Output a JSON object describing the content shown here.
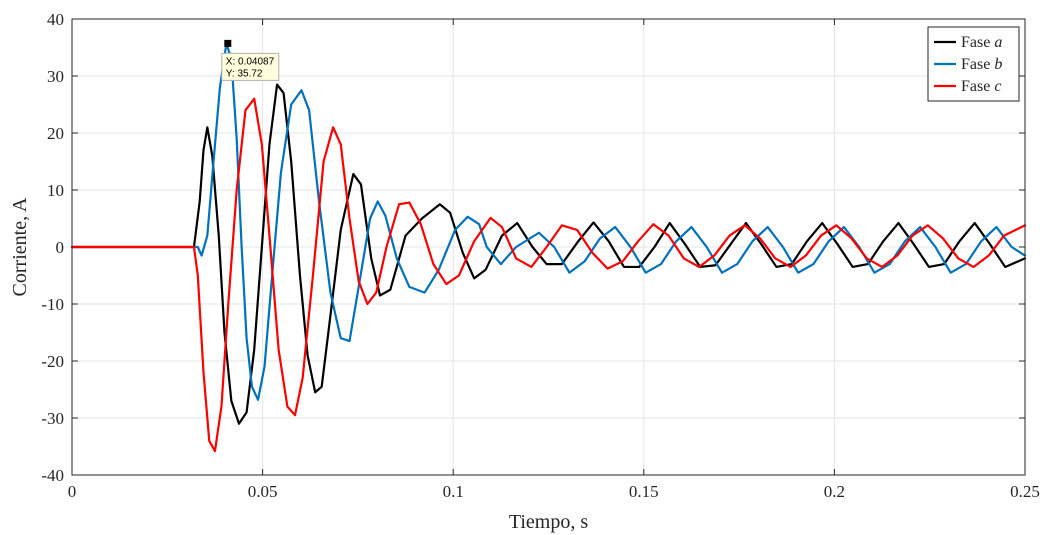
{
  "chart_data": {
    "type": "line",
    "title": "",
    "xlabel": "Tiempo, s",
    "ylabel": "Corriente, A",
    "xlim": [
      0,
      0.25
    ],
    "ylim": [
      -40,
      40
    ],
    "grid": true,
    "x_ticks": [
      0,
      0.05,
      0.1,
      0.15,
      0.2,
      0.25
    ],
    "x_tick_labels": [
      "0",
      "0.05",
      "0.1",
      "0.15",
      "0.2",
      "0.25"
    ],
    "y_ticks": [
      -40,
      -30,
      -20,
      -10,
      0,
      10,
      20,
      30,
      40
    ],
    "y_tick_labels": [
      "-40",
      "-30",
      "-20",
      "-10",
      "0",
      "10",
      "20",
      "30",
      "40"
    ],
    "legend_position": "top-right",
    "series": [
      {
        "name": "Fase a",
        "name_prefix": "Fase ",
        "name_suffix": "a",
        "color": "#000000",
        "points": [
          [
            0,
            0
          ],
          [
            0.032,
            0
          ],
          [
            0.0335,
            8
          ],
          [
            0.0345,
            17
          ],
          [
            0.0355,
            21
          ],
          [
            0.0368,
            16
          ],
          [
            0.0385,
            2
          ],
          [
            0.04,
            -15
          ],
          [
            0.0418,
            -27
          ],
          [
            0.0438,
            -31
          ],
          [
            0.0458,
            -29
          ],
          [
            0.0478,
            -18
          ],
          [
            0.0498,
            0
          ],
          [
            0.0518,
            18
          ],
          [
            0.0538,
            28.5
          ],
          [
            0.0555,
            27
          ],
          [
            0.0575,
            15
          ],
          [
            0.0598,
            -5
          ],
          [
            0.0618,
            -19
          ],
          [
            0.0638,
            -25.5
          ],
          [
            0.0655,
            -24.5
          ],
          [
            0.0678,
            -12
          ],
          [
            0.0705,
            3
          ],
          [
            0.0738,
            12.8
          ],
          [
            0.0758,
            11
          ],
          [
            0.0785,
            -2
          ],
          [
            0.0808,
            -8.5
          ],
          [
            0.0835,
            -7.5
          ],
          [
            0.0875,
            2
          ],
          [
            0.0918,
            5
          ],
          [
            0.0965,
            7.5
          ],
          [
            0.0992,
            6
          ],
          [
            0.1025,
            -1
          ],
          [
            0.1055,
            -5.5
          ],
          [
            0.1085,
            -4
          ],
          [
            0.1128,
            2
          ],
          [
            0.1168,
            4.2
          ],
          [
            0.1208,
            0
          ],
          [
            0.1245,
            -3
          ],
          [
            0.1285,
            -3
          ],
          [
            0.1328,
            1
          ],
          [
            0.1368,
            4.3
          ],
          [
            0.1408,
            1
          ],
          [
            0.1448,
            -3.5
          ],
          [
            0.1488,
            -3.5
          ],
          [
            0.1528,
            0
          ],
          [
            0.1568,
            4.2
          ],
          [
            0.1608,
            0.5
          ],
          [
            0.1648,
            -3.5
          ],
          [
            0.1688,
            -3.2
          ],
          [
            0.1728,
            0.5
          ],
          [
            0.1768,
            4.2
          ],
          [
            0.1808,
            0.5
          ],
          [
            0.1848,
            -3.5
          ],
          [
            0.1888,
            -3
          ],
          [
            0.1928,
            1
          ],
          [
            0.1968,
            4.2
          ],
          [
            0.2008,
            0.5
          ],
          [
            0.2048,
            -3.5
          ],
          [
            0.2088,
            -3
          ],
          [
            0.2128,
            1
          ],
          [
            0.2168,
            4.2
          ],
          [
            0.2208,
            0.5
          ],
          [
            0.2248,
            -3.5
          ],
          [
            0.2288,
            -3
          ],
          [
            0.2328,
            1
          ],
          [
            0.2368,
            4.2
          ],
          [
            0.2408,
            0.5
          ],
          [
            0.2448,
            -3.5
          ],
          [
            0.25,
            -2
          ]
        ]
      },
      {
        "name": "Fase b",
        "name_prefix": "Fase ",
        "name_suffix": "b",
        "color": "#0072bd",
        "points": [
          [
            0,
            0
          ],
          [
            0.033,
            0
          ],
          [
            0.034,
            -1.5
          ],
          [
            0.0355,
            2
          ],
          [
            0.037,
            14
          ],
          [
            0.0388,
            28
          ],
          [
            0.0405,
            35.7
          ],
          [
            0.0418,
            33
          ],
          [
            0.0432,
            19
          ],
          [
            0.0445,
            0
          ],
          [
            0.0458,
            -16
          ],
          [
            0.0472,
            -24.5
          ],
          [
            0.0488,
            -26.8
          ],
          [
            0.0505,
            -21
          ],
          [
            0.0525,
            -5
          ],
          [
            0.0548,
            13
          ],
          [
            0.0575,
            25
          ],
          [
            0.0602,
            27.5
          ],
          [
            0.0622,
            24
          ],
          [
            0.0648,
            8
          ],
          [
            0.0678,
            -8
          ],
          [
            0.0705,
            -16
          ],
          [
            0.0728,
            -16.5
          ],
          [
            0.0752,
            -7
          ],
          [
            0.0782,
            5
          ],
          [
            0.0802,
            8
          ],
          [
            0.0822,
            5.5
          ],
          [
            0.0852,
            -2
          ],
          [
            0.0885,
            -7
          ],
          [
            0.0925,
            -8
          ],
          [
            0.0962,
            -4
          ],
          [
            0.1005,
            3
          ],
          [
            0.1038,
            5.3
          ],
          [
            0.1068,
            4
          ],
          [
            0.1088,
            0
          ],
          [
            0.1125,
            -3
          ],
          [
            0.1165,
            0
          ],
          [
            0.1225,
            2.5
          ],
          [
            0.1265,
            0
          ],
          [
            0.1305,
            -4.5
          ],
          [
            0.1345,
            -2.5
          ],
          [
            0.1385,
            1.5
          ],
          [
            0.1425,
            3.5
          ],
          [
            0.1465,
            0
          ],
          [
            0.1505,
            -4.5
          ],
          [
            0.1545,
            -3
          ],
          [
            0.1585,
            1
          ],
          [
            0.1625,
            3.5
          ],
          [
            0.1665,
            0
          ],
          [
            0.1705,
            -4.5
          ],
          [
            0.1745,
            -3
          ],
          [
            0.1785,
            1
          ],
          [
            0.1825,
            3.5
          ],
          [
            0.1865,
            0
          ],
          [
            0.1905,
            -4.5
          ],
          [
            0.1945,
            -3
          ],
          [
            0.1985,
            1
          ],
          [
            0.2025,
            3.5
          ],
          [
            0.2065,
            0
          ],
          [
            0.2105,
            -4.5
          ],
          [
            0.2145,
            -3
          ],
          [
            0.2185,
            1
          ],
          [
            0.2225,
            3.5
          ],
          [
            0.2265,
            0
          ],
          [
            0.2305,
            -4.5
          ],
          [
            0.2345,
            -3
          ],
          [
            0.2385,
            1
          ],
          [
            0.2425,
            3.5
          ],
          [
            0.2465,
            0
          ],
          [
            0.25,
            -1.5
          ]
        ]
      },
      {
        "name": "Fase c",
        "name_prefix": "Fase ",
        "name_suffix": "c",
        "color": "#ff0000",
        "points": [
          [
            0,
            0
          ],
          [
            0.032,
            0
          ],
          [
            0.033,
            -5
          ],
          [
            0.0345,
            -22
          ],
          [
            0.036,
            -34
          ],
          [
            0.0375,
            -35.8
          ],
          [
            0.0392,
            -28
          ],
          [
            0.041,
            -10
          ],
          [
            0.0432,
            10
          ],
          [
            0.0455,
            24
          ],
          [
            0.0478,
            26
          ],
          [
            0.0498,
            18
          ],
          [
            0.0518,
            2
          ],
          [
            0.0542,
            -18
          ],
          [
            0.0565,
            -28
          ],
          [
            0.0585,
            -29.5
          ],
          [
            0.0605,
            -23
          ],
          [
            0.0632,
            -5
          ],
          [
            0.066,
            15
          ],
          [
            0.0685,
            21
          ],
          [
            0.0705,
            18
          ],
          [
            0.0728,
            5
          ],
          [
            0.0752,
            -6
          ],
          [
            0.0775,
            -10
          ],
          [
            0.0798,
            -8
          ],
          [
            0.0825,
            0
          ],
          [
            0.0858,
            7.5
          ],
          [
            0.0885,
            7.8
          ],
          [
            0.0915,
            4
          ],
          [
            0.0948,
            -3
          ],
          [
            0.0982,
            -6.5
          ],
          [
            0.1015,
            -5
          ],
          [
            0.1055,
            1
          ],
          [
            0.1098,
            5.1
          ],
          [
            0.1128,
            3.5
          ],
          [
            0.1165,
            -2
          ],
          [
            0.1205,
            -3.5
          ],
          [
            0.1245,
            0
          ],
          [
            0.1285,
            3.8
          ],
          [
            0.1325,
            3
          ],
          [
            0.1365,
            -1
          ],
          [
            0.1405,
            -3.8
          ],
          [
            0.1445,
            -2.5
          ],
          [
            0.1485,
            1
          ],
          [
            0.1525,
            4
          ],
          [
            0.1565,
            2
          ],
          [
            0.1605,
            -2
          ],
          [
            0.1645,
            -3.5
          ],
          [
            0.1685,
            -1.5
          ],
          [
            0.1725,
            2
          ],
          [
            0.1765,
            3.8
          ],
          [
            0.1805,
            1.5
          ],
          [
            0.1845,
            -2
          ],
          [
            0.1885,
            -3.5
          ],
          [
            0.1925,
            -1.5
          ],
          [
            0.1965,
            2
          ],
          [
            0.2005,
            3.8
          ],
          [
            0.2045,
            1.5
          ],
          [
            0.2085,
            -2
          ],
          [
            0.2125,
            -3.5
          ],
          [
            0.2165,
            -1.5
          ],
          [
            0.2205,
            2
          ],
          [
            0.2245,
            3.8
          ],
          [
            0.2285,
            1.5
          ],
          [
            0.2325,
            -2
          ],
          [
            0.2365,
            -3.5
          ],
          [
            0.2405,
            -1.5
          ],
          [
            0.2445,
            2
          ],
          [
            0.25,
            3.8
          ]
        ]
      }
    ],
    "datatip": {
      "x_value": 0.04087,
      "y_value": 35.72,
      "x_text": "X: 0.04087",
      "y_text": "Y: 35.72"
    }
  },
  "colors": {
    "grid": "#e5e5e5",
    "axis": "#262626",
    "tip_background": "#ffffdd",
    "tip_border": "#b0b0b0"
  }
}
